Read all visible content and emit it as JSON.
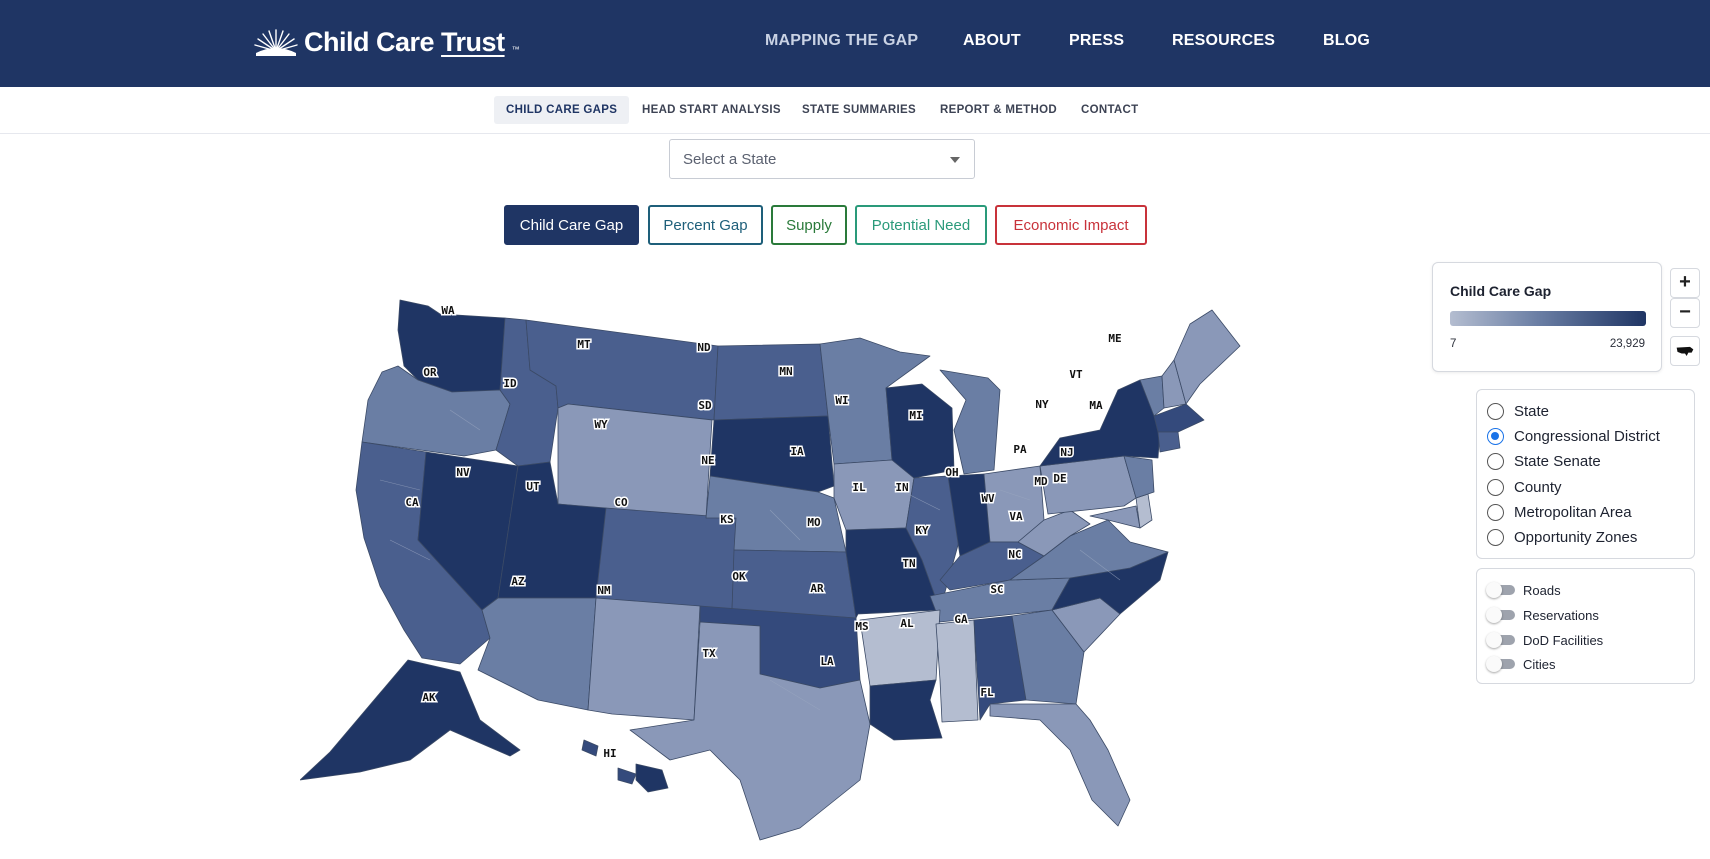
{
  "brand": {
    "name_prefix": "Child Care",
    "name_underlined": "Trust",
    "trademark": "™"
  },
  "main_nav": [
    {
      "label": "MAPPING THE GAP"
    },
    {
      "label": "ABOUT"
    },
    {
      "label": "PRESS"
    },
    {
      "label": "RESOURCES"
    },
    {
      "label": "BLOG"
    }
  ],
  "sub_nav": [
    {
      "label": "CHILD CARE GAPS",
      "active": true
    },
    {
      "label": "HEAD START ANALYSIS"
    },
    {
      "label": "STATE SUMMARIES"
    },
    {
      "label": "REPORT & METHOD"
    },
    {
      "label": "CONTACT"
    }
  ],
  "state_select": {
    "placeholder": "Select a State"
  },
  "metric_buttons": [
    {
      "label": "Child Care Gap",
      "color": "#1f3564",
      "selected": true
    },
    {
      "label": "Percent Gap",
      "color": "#1e5f7a"
    },
    {
      "label": "Supply",
      "color": "#2a7a3a"
    },
    {
      "label": "Potential Need",
      "color": "#2a9a7a"
    },
    {
      "label": "Economic Impact",
      "color": "#c8323a"
    }
  ],
  "legend": {
    "title": "Child Care Gap",
    "min_label": "7",
    "max_label": "23,929",
    "color_low": "#b4bdd0",
    "color_high": "#1f3564"
  },
  "zoom_controls": {
    "zoom_in": "+",
    "zoom_out": "−"
  },
  "geography_options": [
    {
      "label": "State",
      "selected": false
    },
    {
      "label": "Congressional District",
      "selected": true
    },
    {
      "label": "State Senate",
      "selected": false
    },
    {
      "label": "County",
      "selected": false
    },
    {
      "label": "Metropolitan Area",
      "selected": false
    },
    {
      "label": "Opportunity Zones",
      "selected": false
    }
  ],
  "layer_toggles": [
    {
      "label": "Roads",
      "on": false
    },
    {
      "label": "Reservations",
      "on": false
    },
    {
      "label": "DoD Facilities",
      "on": false
    },
    {
      "label": "Cities",
      "on": false
    }
  ],
  "map": {
    "state_labels": [
      "WA",
      "OR",
      "ID",
      "MT",
      "ND",
      "MN",
      "WI",
      "MI",
      "NY",
      "VT",
      "ME",
      "MA",
      "SD",
      "WY",
      "NE",
      "IA",
      "IL",
      "IN",
      "OH",
      "PA",
      "NJ",
      "MD",
      "DE",
      "NV",
      "UT",
      "CA",
      "CO",
      "KS",
      "MO",
      "KY",
      "WV",
      "VA",
      "NC",
      "TN",
      "SC",
      "OK",
      "AR",
      "AZ",
      "NM",
      "TX",
      "MS",
      "AL",
      "GA",
      "LA",
      "FL",
      "AK",
      "HI"
    ],
    "shade_scale": [
      "#b4bdd0",
      "#8a98b8",
      "#6a7ea4",
      "#4a5f8e",
      "#344a7c",
      "#1f3564"
    ]
  }
}
